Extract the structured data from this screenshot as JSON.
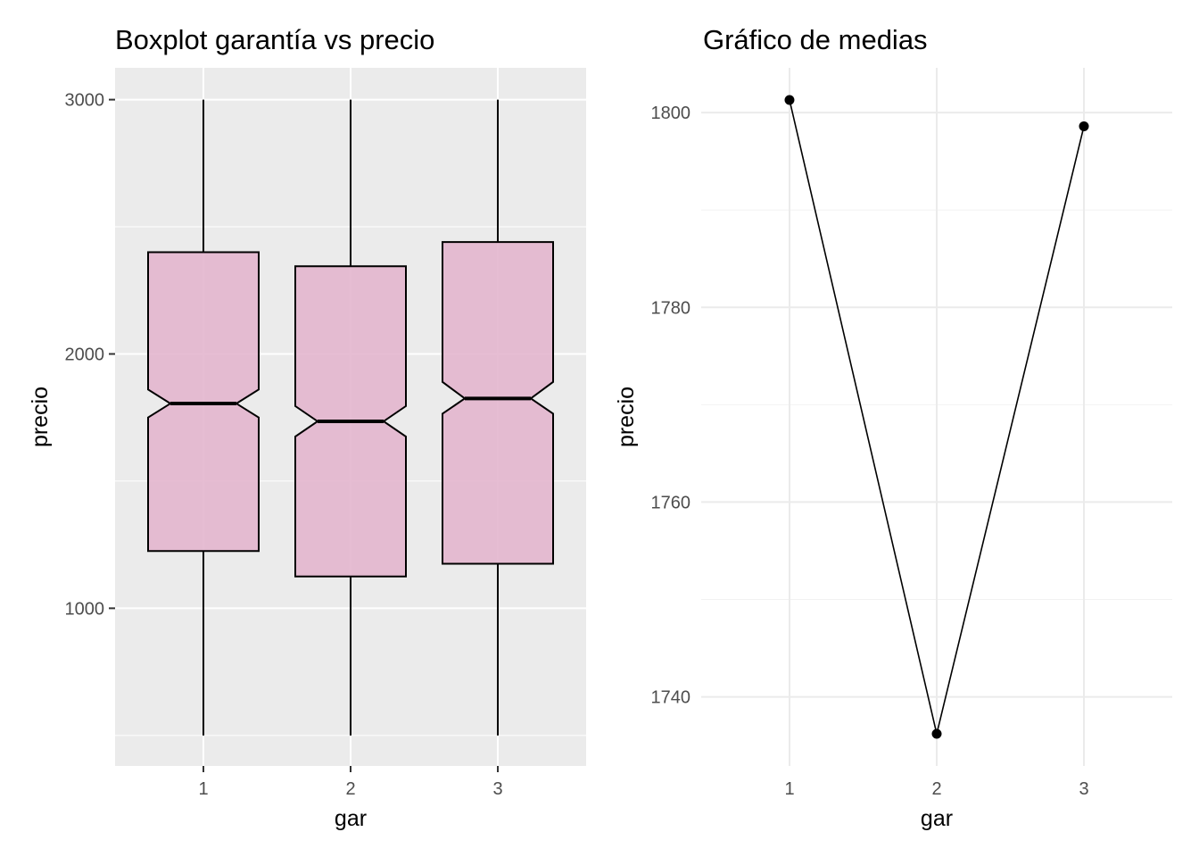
{
  "chart_data": [
    {
      "type": "boxplot",
      "notched": true,
      "title": "Boxplot garantía vs precio",
      "xlabel": "gar",
      "ylabel": "precio",
      "categories": [
        "1",
        "2",
        "3"
      ],
      "yticks": [
        1000,
        2000,
        3000
      ],
      "ylim": [
        380,
        3125
      ],
      "grid": true,
      "panel_background": "#ebebeb",
      "box_fill": "#e2b4cd",
      "boxes": [
        {
          "x": "1",
          "whisker_low": 500,
          "q1": 1225,
          "median": 1805,
          "q3": 2400,
          "whisker_high": 3000,
          "notch_low": 1750,
          "notch_high": 1860
        },
        {
          "x": "2",
          "whisker_low": 500,
          "q1": 1125,
          "median": 1735,
          "q3": 2345,
          "whisker_high": 3000,
          "notch_low": 1675,
          "notch_high": 1795
        },
        {
          "x": "3",
          "whisker_low": 500,
          "q1": 1175,
          "median": 1825,
          "q3": 2440,
          "whisker_high": 3000,
          "notch_low": 1765,
          "notch_high": 1890
        }
      ]
    },
    {
      "type": "line",
      "title": "Gráfico de medias",
      "xlabel": "gar",
      "ylabel": "precio",
      "x": [
        "1",
        "2",
        "3"
      ],
      "values": [
        1801.3,
        1736.2,
        1798.6
      ],
      "yticks": [
        1740,
        1760,
        1780,
        1800
      ],
      "ylim": [
        1732.9,
        1804.6
      ],
      "grid": true,
      "theme": "minimal"
    }
  ]
}
